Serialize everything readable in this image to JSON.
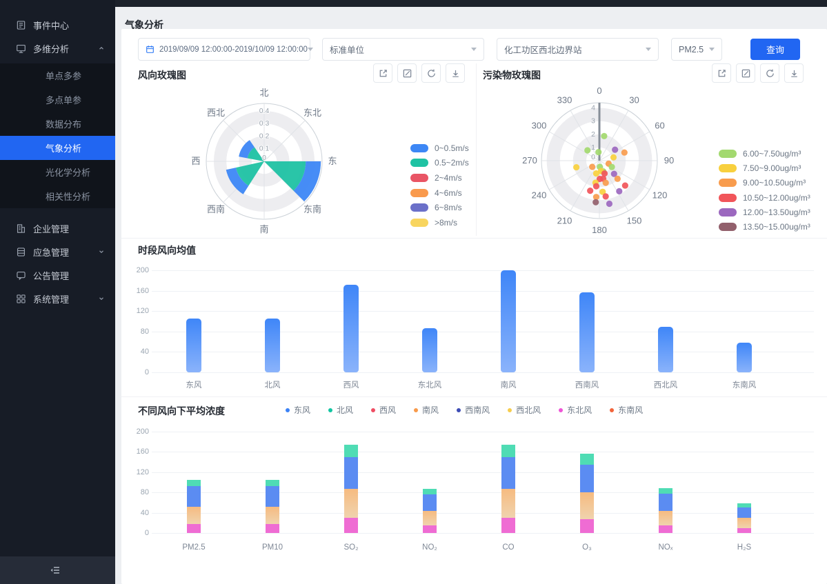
{
  "sidebar": {
    "items": [
      {
        "id": "event-center",
        "label": "事件中心",
        "icon": "document"
      },
      {
        "id": "multi-dimension-analysis",
        "label": "多维分析",
        "icon": "monitor",
        "expanded": true,
        "children": [
          {
            "id": "single-point-multi-param",
            "label": "单点多参"
          },
          {
            "id": "multi-point-single-param",
            "label": "多点单参"
          },
          {
            "id": "data-distribution",
            "label": "数据分布"
          },
          {
            "id": "weather-analysis",
            "label": "气象分析",
            "active": true
          },
          {
            "id": "photochemical-analysis",
            "label": "光化学分析"
          },
          {
            "id": "correlation-analysis",
            "label": "相关性分析"
          }
        ]
      },
      {
        "id": "enterprise-management",
        "label": "企业管理",
        "icon": "building"
      },
      {
        "id": "emergency-management",
        "label": "应急管理",
        "icon": "database",
        "collapsed": true
      },
      {
        "id": "notice-management",
        "label": "公告管理",
        "icon": "chat"
      },
      {
        "id": "system-management",
        "label": "系统管理",
        "icon": "grid",
        "collapsed": true
      }
    ],
    "collapse_icon": "collapse-sidebar"
  },
  "header": {
    "title": "气象分析"
  },
  "filters": {
    "date_range": "2019/09/09 12:00:00-2019/10/09 12:00:00",
    "unit": "标准单位",
    "station": "化工功区西北边界站",
    "pollutant": "PM2.5",
    "query_label": "查询"
  },
  "panels": {
    "toolbar_icons": [
      "external-link",
      "edit",
      "refresh",
      "download"
    ]
  },
  "chart_data": [
    {
      "type": "wind-rose",
      "title": "风向玫瑰图",
      "direction_labels": [
        "北",
        "东北",
        "东",
        "东南",
        "南",
        "西南",
        "西",
        "西北"
      ],
      "radial_tick_labels": [
        "0",
        "0.1",
        "0.2",
        "0.3",
        "0.4"
      ],
      "radial_max": 0.46,
      "legend": [
        {
          "label": "0~0.5m/s",
          "color": "#3d87f5"
        },
        {
          "label": "0.5~2m/s",
          "color": "#1fc2a3"
        },
        {
          "label": "2~4m/s",
          "color": "#e95565"
        },
        {
          "label": "4~6m/s",
          "color": "#f99a4d"
        },
        {
          "label": "6~8m/s",
          "color": "#6b70c9"
        },
        {
          "label": ">8m/s",
          "color": "#f8d55f"
        }
      ],
      "wedges": [
        {
          "dir_azimuth": 112.5,
          "width": 45,
          "levels": [
            {
              "speed": "0.5~2m/s",
              "to": 0.33
            },
            {
              "speed": "0~0.5m/s",
              "to": 0.45
            }
          ]
        },
        {
          "dir_azimuth": 235,
          "width": 45,
          "levels": [
            {
              "speed": "0.5~2m/s",
              "to": 0.23
            },
            {
              "speed": "0~0.5m/s",
              "to": 0.31
            }
          ]
        },
        {
          "dir_azimuth": 303,
          "width": 45,
          "levels": [
            {
              "speed": "0.5~2m/s",
              "to": 0.135
            },
            {
              "speed": "0~0.5m/s",
              "to": 0.205
            }
          ]
        }
      ]
    },
    {
      "type": "polar-scatter",
      "title": "污染物玫瑰图",
      "angle_tick_labels": [
        "0",
        "30",
        "60",
        "90",
        "120",
        "150",
        "180",
        "210",
        "240",
        "270",
        "300",
        "330"
      ],
      "radial_tick_labels": [
        "0",
        "1",
        "2",
        "3",
        "4"
      ],
      "radial_max": 4.4,
      "legend": [
        {
          "label": "6.00~7.50ug/m³",
          "color": "#a3d96f"
        },
        {
          "label": "7.50~9.00ug/m³",
          "color": "#f8d03e"
        },
        {
          "label": "9.00~10.50ug/m³",
          "color": "#f89c4e"
        },
        {
          "label": "10.50~12.00ug/m³",
          "color": "#f1555a"
        },
        {
          "label": "12.00~13.50ug/m³",
          "color": "#9c68bf"
        },
        {
          "label": "13.50~15.00ug/m³",
          "color": "#92606c"
        }
      ],
      "points": [
        [
          11,
          1.9,
          0
        ],
        [
          311,
          1.2,
          0
        ],
        [
          354,
          0.65,
          0
        ],
        [
          55,
          1.45,
          4
        ],
        [
          72,
          2.0,
          2
        ],
        [
          77,
          1.1,
          1
        ],
        [
          254,
          1.82,
          1
        ],
        [
          229,
          0.72,
          2
        ],
        [
          176,
          0.47,
          0
        ],
        [
          108,
          0.74,
          2
        ],
        [
          117,
          1.06,
          0
        ],
        [
          160,
          0.88,
          0
        ],
        [
          171,
          0.8,
          1
        ],
        [
          194,
          1.0,
          1
        ],
        [
          132,
          1.5,
          4
        ],
        [
          179,
          1.39,
          3
        ],
        [
          168,
          1.4,
          3
        ],
        [
          158,
          1.05,
          3
        ],
        [
          135,
          1.95,
          2
        ],
        [
          164,
          1.75,
          2
        ],
        [
          190,
          1.7,
          1
        ],
        [
          187,
          1.96,
          3
        ],
        [
          134,
          2.72,
          3
        ],
        [
          147,
          2.77,
          4
        ],
        [
          174,
          2.38,
          1
        ],
        [
          197,
          2.39,
          3
        ],
        [
          185,
          2.77,
          2
        ],
        [
          170,
          2.76,
          3
        ],
        [
          185,
          3.17,
          5
        ],
        [
          167,
          3.36,
          4
        ]
      ]
    },
    {
      "type": "bar",
      "title": "时段风向均值",
      "categories": [
        "东风",
        "北风",
        "西风",
        "东北风",
        "南风",
        "西南风",
        "西北风",
        "东南风"
      ],
      "values": [
        105,
        105,
        172,
        86,
        200,
        157,
        89,
        58
      ],
      "yticks": [
        0,
        40,
        80,
        120,
        160,
        200
      ],
      "ylim": [
        0,
        200
      ],
      "bar_gradient": [
        "#3f86f8",
        "#8ab3fb"
      ]
    },
    {
      "type": "stacked-bar",
      "title": "不同风向下平均浓度",
      "categories": [
        "PM2.5",
        "PM10",
        "SO₂",
        "NO₂",
        "CO",
        "O₃",
        "NOₓ",
        "H₂S"
      ],
      "legend": [
        {
          "label": "东风",
          "color": "#3b82f6"
        },
        {
          "label": "北风",
          "color": "#12c5a2"
        },
        {
          "label": "西风",
          "color": "#ef4d63"
        },
        {
          "label": "南风",
          "color": "#f89a4a"
        },
        {
          "label": "西南风",
          "color": "#3d4cb5"
        },
        {
          "label": "西北风",
          "color": "#f6cd4e"
        },
        {
          "label": "东北风",
          "color": "#ee55d6"
        },
        {
          "label": "东南风",
          "color": "#f2643a"
        }
      ],
      "yticks": [
        0,
        40,
        80,
        120,
        160,
        200
      ],
      "ylim": [
        0,
        200
      ],
      "series": [
        {
          "name": "东北风",
          "color": "#ef6cd3",
          "color_bottom": "#ef6cd3",
          "values": [
            17,
            17,
            30,
            15,
            30,
            27,
            15,
            10
          ]
        },
        {
          "name": "南风",
          "color": "#f6bb80",
          "color_bottom": "#f0d3ae",
          "values": [
            35,
            35,
            57,
            28,
            57,
            53,
            29,
            20
          ]
        },
        {
          "name": "东风",
          "color": "#5b8cf2",
          "color_bottom": "#5b8cf2",
          "values": [
            40,
            40,
            62,
            33,
            62,
            54,
            33,
            21
          ]
        },
        {
          "name": "北风",
          "color": "#4fdcb4",
          "color_bottom": "#4fdcb4",
          "values": [
            13,
            13,
            25,
            11,
            25,
            22,
            12,
            7
          ]
        }
      ]
    }
  ]
}
